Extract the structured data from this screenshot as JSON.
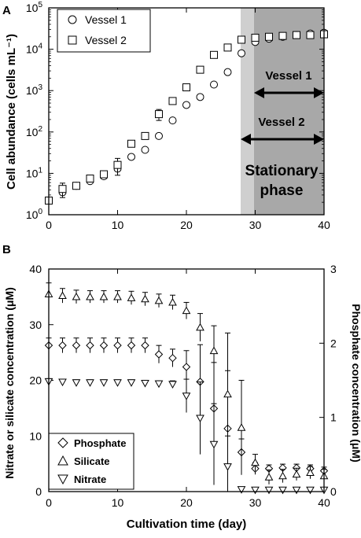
{
  "chart_data": [
    {
      "panel_label": "A",
      "type": "scatter",
      "ylabel": "Cell abundance (cells mL⁻¹)",
      "xlabel": "",
      "xlim": [
        0,
        40
      ],
      "xticks": [
        0,
        10,
        20,
        30,
        40
      ],
      "ylog": true,
      "ylim": [
        1,
        100000
      ],
      "yticks": [
        {
          "value": 1,
          "base": "10",
          "exp": "0"
        },
        {
          "value": 10,
          "base": "10",
          "exp": "1"
        },
        {
          "value": 100,
          "base": "10",
          "exp": "2"
        },
        {
          "value": 1000,
          "base": "10",
          "exp": "3"
        },
        {
          "value": 10000,
          "base": "10",
          "exp": "4"
        },
        {
          "value": 100000,
          "base": "10",
          "exp": "5"
        }
      ],
      "legend": {
        "placement": "top-left"
      },
      "shaded_regions": [
        {
          "name": "Vessel 2 stationary",
          "x": [
            28,
            40
          ],
          "color": "#cfcfcf"
        },
        {
          "name": "Vessel 1 stationary",
          "x": [
            30,
            40
          ],
          "color": "#a8a8a8"
        }
      ],
      "annotations": {
        "vessel1": {
          "label": "Vessel 1",
          "x_range": [
            30,
            40
          ]
        },
        "vessel2": {
          "label": "Vessel 2",
          "x_range": [
            28,
            40
          ]
        },
        "stationary": [
          "Stationary",
          "phase"
        ]
      },
      "series": [
        {
          "name": "Vessel 1",
          "marker": "circle",
          "x": [
            0,
            2,
            4,
            6,
            8,
            10,
            12,
            14,
            16,
            18,
            20,
            22,
            24,
            26,
            28,
            30,
            32,
            34,
            36,
            38,
            40
          ],
          "y": [
            2.2,
            3.5,
            5,
            6.5,
            8.5,
            13,
            25,
            37,
            80,
            190,
            450,
            700,
            1400,
            2800,
            8000,
            15000,
            18000,
            20000,
            22000,
            24000,
            25000
          ],
          "err": [
            0.1,
            0.5,
            0.3,
            0.4,
            0.5,
            1.5,
            2,
            3,
            5,
            10,
            20,
            30,
            50,
            100,
            400,
            1000,
            1000,
            1000,
            1500,
            1500,
            2000
          ]
        },
        {
          "name": "Vessel 2",
          "marker": "square",
          "x": [
            0,
            2,
            4,
            6,
            8,
            10,
            12,
            14,
            16,
            18,
            20,
            22,
            24,
            26,
            28,
            30,
            32,
            34,
            36,
            38,
            40
          ],
          "y": [
            2.2,
            4.2,
            5,
            7.5,
            9.5,
            16,
            52,
            80,
            270,
            560,
            1200,
            3200,
            7300,
            11000,
            17000,
            19000,
            20000,
            21000,
            22000,
            22000,
            23000
          ],
          "err": [
            0.2,
            1.6,
            0.4,
            0.8,
            1,
            7,
            5,
            8,
            80,
            60,
            100,
            200,
            500,
            800,
            1500,
            1500,
            1500,
            1500,
            1500,
            2000,
            2000
          ]
        }
      ]
    },
    {
      "panel_label": "B",
      "type": "scatter",
      "xlabel": "Cultivation time (day)",
      "ylabel_left": "Nitrate or silicate concentration (μM)",
      "ylabel_right": "Phosphate concentration (μM)",
      "xlim": [
        0,
        40
      ],
      "xticks": [
        0,
        10,
        20,
        30,
        40
      ],
      "ylim_left": [
        0,
        40
      ],
      "yticks_left": [
        0,
        10,
        20,
        30,
        40
      ],
      "ylim_right": [
        0,
        3
      ],
      "yticks_right": [
        0,
        1,
        2,
        3
      ],
      "legend": {
        "placement": "bottom-left"
      },
      "series": [
        {
          "name": "Phosphate",
          "marker": "diamond",
          "axis": "right",
          "x": [
            0,
            2,
            4,
            6,
            8,
            10,
            12,
            14,
            16,
            18,
            20,
            22,
            24,
            26,
            28,
            30,
            32,
            34,
            36,
            38,
            40
          ],
          "y": [
            1.97,
            1.97,
            1.97,
            1.97,
            1.97,
            1.97,
            1.97,
            1.97,
            1.85,
            1.8,
            1.68,
            1.48,
            1.12,
            0.85,
            0.53,
            0.31,
            0.31,
            0.32,
            0.32,
            0.31,
            0.28
          ],
          "err": [
            0.1,
            0.1,
            0.1,
            0.1,
            0.1,
            0.1,
            0.1,
            0.1,
            0.12,
            0.12,
            0.22,
            0.5,
            0.62,
            0.78,
            0.18,
            0.08,
            0.05,
            0.05,
            0.05,
            0.05,
            0.05
          ]
        },
        {
          "name": "Silicate",
          "marker": "triangle-up",
          "axis": "left",
          "x": [
            0,
            2,
            4,
            6,
            8,
            10,
            12,
            14,
            16,
            18,
            20,
            22,
            24,
            26,
            28,
            30,
            32,
            34,
            36,
            38,
            40
          ],
          "y": [
            35.5,
            35.2,
            35,
            35,
            35,
            35,
            34.8,
            34.6,
            34.3,
            34,
            32.5,
            29.5,
            25.3,
            17.5,
            11.5,
            5.2,
            2.6,
            2.8,
            3.1,
            3.4,
            2.8
          ],
          "err": [
            2,
            1.3,
            1.2,
            1.1,
            1.1,
            1.1,
            1.2,
            1.2,
            1.2,
            1.3,
            1.5,
            2.5,
            4.5,
            11,
            8.5,
            1.5,
            1.3,
            1.2,
            1.1,
            1.1,
            1.2
          ]
        },
        {
          "name": "Nitrate",
          "marker": "triangle-down",
          "axis": "left",
          "x": [
            0,
            2,
            4,
            6,
            8,
            10,
            12,
            14,
            16,
            18,
            20,
            22,
            24,
            26,
            28,
            30,
            32,
            34,
            36,
            38,
            40
          ],
          "y": [
            19.8,
            19.7,
            19.6,
            19.6,
            19.6,
            19.6,
            19.6,
            19.5,
            19.4,
            19.3,
            17.2,
            13.2,
            8.5,
            4.5,
            0.4,
            0.3,
            0.3,
            0.3,
            0.3,
            0.3,
            0.3
          ],
          "err": [
            0.5,
            0.5,
            0.5,
            0.5,
            0.5,
            0.5,
            0.5,
            0.5,
            0.5,
            0.6,
            3,
            6.5,
            7.3,
            5.5,
            0.2,
            0.2,
            0.2,
            0.2,
            0.2,
            0.2,
            0.2
          ]
        }
      ]
    }
  ]
}
